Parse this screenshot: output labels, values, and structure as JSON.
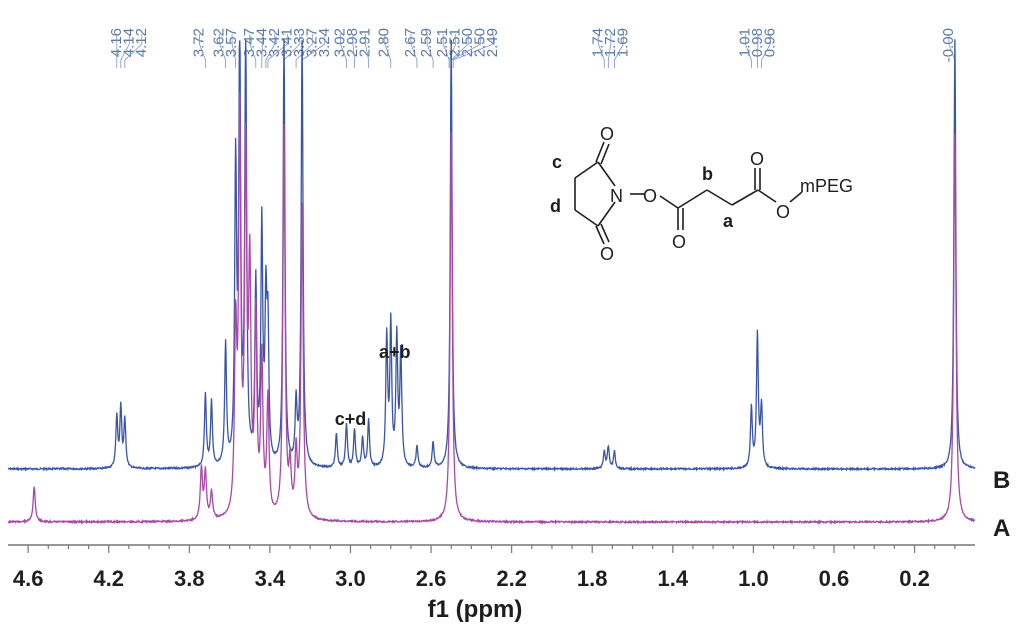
{
  "chart_data": {
    "type": "line",
    "title": "",
    "xlabel": "f1 (ppm)",
    "ylabel": "",
    "xlim": [
      4.7,
      -0.1
    ],
    "x_reversed": true,
    "grid": false,
    "tick_labels": [
      "4.6",
      "4.2",
      "3.8",
      "3.4",
      "3.0",
      "2.6",
      "2.2",
      "1.8",
      "1.4",
      "1.0",
      "0.6",
      "0.2"
    ],
    "peak_labels": [
      "4.16",
      "4.14",
      "4.12",
      "3.72",
      "3.62",
      "3.57",
      "3.47",
      "3.44",
      "3.42",
      "3.41",
      "3.33",
      "3.27",
      "3.24",
      "3.02",
      "2.98",
      "2.91",
      "2.80",
      "2.67",
      "2.59",
      "2.51",
      "2.51",
      "2.50",
      "2.50",
      "2.49",
      "1.74",
      "1.72",
      "1.69",
      "1.01",
      "0.98",
      "0.96",
      "-0.00"
    ],
    "annotations": [
      {
        "text": "a+b",
        "x": 2.78
      },
      {
        "text": "c+d",
        "x": 3.0
      }
    ],
    "series": [
      {
        "name": "B",
        "color": "#3a55a4",
        "peaks": [
          [
            4.16,
            0.12
          ],
          [
            4.14,
            0.14
          ],
          [
            4.12,
            0.11
          ],
          [
            3.72,
            0.17
          ],
          [
            3.69,
            0.15
          ],
          [
            3.62,
            0.28
          ],
          [
            3.57,
            0.68
          ],
          [
            3.55,
            1.0
          ],
          [
            3.52,
            1.0
          ],
          [
            3.47,
            0.42
          ],
          [
            3.44,
            0.55
          ],
          [
            3.42,
            0.35
          ],
          [
            3.41,
            0.3
          ],
          [
            3.33,
            1.0
          ],
          [
            3.27,
            0.14
          ],
          [
            3.24,
            1.0
          ],
          [
            3.07,
            0.08
          ],
          [
            3.02,
            0.1
          ],
          [
            2.98,
            0.09
          ],
          [
            2.94,
            0.07
          ],
          [
            2.91,
            0.11
          ],
          [
            2.82,
            0.3
          ],
          [
            2.8,
            0.33
          ],
          [
            2.77,
            0.3
          ],
          [
            2.75,
            0.26
          ],
          [
            2.67,
            0.05
          ],
          [
            2.59,
            0.06
          ],
          [
            2.5,
            1.0
          ],
          [
            1.74,
            0.04
          ],
          [
            1.72,
            0.05
          ],
          [
            1.69,
            0.04
          ],
          [
            1.01,
            0.14
          ],
          [
            0.98,
            0.31
          ],
          [
            0.96,
            0.14
          ],
          [
            0.0,
            1.0
          ]
        ]
      },
      {
        "name": "A",
        "color": "#a64aa6",
        "peaks": [
          [
            4.57,
            0.09
          ],
          [
            3.74,
            0.13
          ],
          [
            3.72,
            0.12
          ],
          [
            3.69,
            0.07
          ],
          [
            3.57,
            0.45
          ],
          [
            3.55,
            1.0
          ],
          [
            3.52,
            0.9
          ],
          [
            3.5,
            0.6
          ],
          [
            3.47,
            0.5
          ],
          [
            3.44,
            0.4
          ],
          [
            3.41,
            0.3
          ],
          [
            3.33,
            1.0
          ],
          [
            3.3,
            0.12
          ],
          [
            3.27,
            0.16
          ],
          [
            3.24,
            0.8
          ],
          [
            2.5,
            1.0
          ],
          [
            0.0,
            1.0
          ]
        ]
      }
    ],
    "structure": {
      "labels": [
        "c",
        "d",
        "b",
        "a"
      ],
      "atoms": [
        "O",
        "O",
        "N",
        "O",
        "O",
        "O",
        "O",
        "mPEG"
      ]
    }
  }
}
